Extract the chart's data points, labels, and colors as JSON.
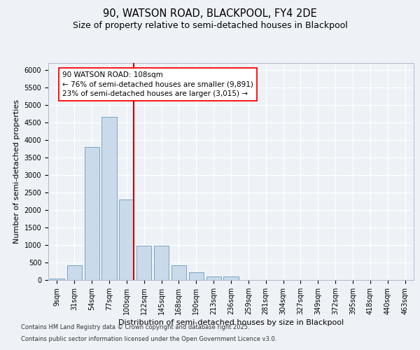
{
  "title1": "90, WATSON ROAD, BLACKPOOL, FY4 2DE",
  "title2": "Size of property relative to semi-detached houses in Blackpool",
  "xlabel": "Distribution of semi-detached houses by size in Blackpool",
  "ylabel": "Number of semi-detached properties",
  "categories": [
    "9sqm",
    "31sqm",
    "54sqm",
    "77sqm",
    "100sqm",
    "122sqm",
    "145sqm",
    "168sqm",
    "190sqm",
    "213sqm",
    "236sqm",
    "259sqm",
    "281sqm",
    "304sqm",
    "327sqm",
    "349sqm",
    "372sqm",
    "395sqm",
    "418sqm",
    "440sqm",
    "463sqm"
  ],
  "values": [
    50,
    430,
    3800,
    4650,
    2300,
    980,
    980,
    420,
    220,
    110,
    100,
    0,
    0,
    0,
    0,
    0,
    0,
    0,
    0,
    0,
    0
  ],
  "bar_color": "#c9daea",
  "bar_edge_color": "#6699bb",
  "vline_color": "#cc0000",
  "vline_pos": 4.42,
  "annotation_title": "90 WATSON ROAD: 108sqm",
  "annotation_line1": "← 76% of semi-detached houses are smaller (9,891)",
  "annotation_line2": "23% of semi-detached houses are larger (3,015) →",
  "ylim": [
    0,
    6200
  ],
  "yticks": [
    0,
    500,
    1000,
    1500,
    2000,
    2500,
    3000,
    3500,
    4000,
    4500,
    5000,
    5500,
    6000
  ],
  "footer1": "Contains HM Land Registry data © Crown copyright and database right 2025.",
  "footer2": "Contains public sector information licensed under the Open Government Licence v3.0.",
  "bg_color": "#eef2f7",
  "plot_bg_color": "#eef2f7",
  "title1_fontsize": 10.5,
  "title2_fontsize": 9,
  "axis_label_fontsize": 8,
  "tick_fontsize": 7,
  "footer_fontsize": 6,
  "annot_fontsize": 7.5
}
